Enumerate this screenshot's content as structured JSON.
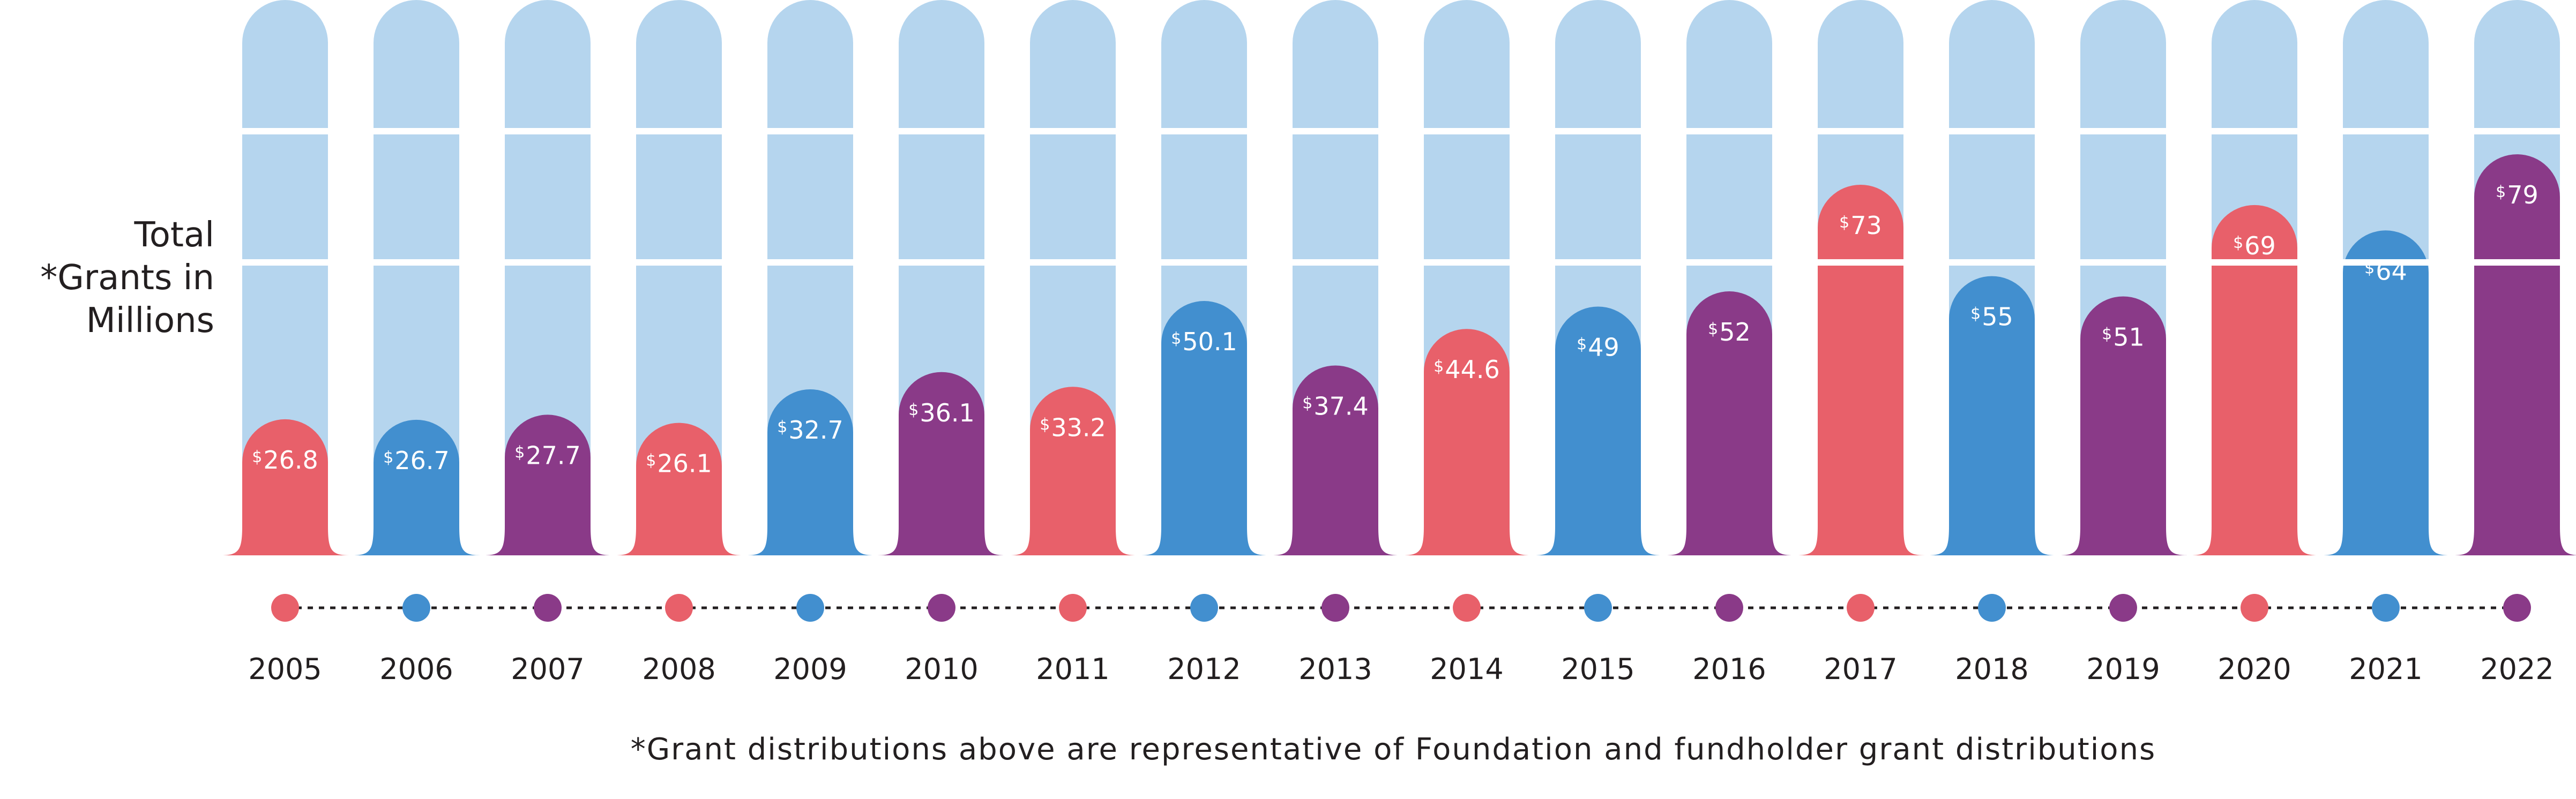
{
  "chart_data": {
    "type": "bar",
    "title": "",
    "ylabel_lines": [
      "Total",
      "*Grants in",
      "Millions"
    ],
    "xlabel": "",
    "currency_symbol": "$",
    "categories": [
      "2005",
      "2006",
      "2007",
      "2008",
      "2009",
      "2010",
      "2011",
      "2012",
      "2013",
      "2014",
      "2015",
      "2016",
      "2017",
      "2018",
      "2019",
      "2020",
      "2021",
      "2022"
    ],
    "values": [
      26.8,
      26.7,
      27.7,
      26.1,
      32.7,
      36.1,
      33.2,
      50.1,
      37.4,
      44.6,
      49,
      52,
      73,
      55,
      51,
      69,
      64,
      79
    ],
    "value_labels": [
      "26.8",
      "26.7",
      "27.7",
      "26.1",
      "32.7",
      "36.1",
      "33.2",
      "50.1",
      "37.4",
      "44.6",
      "49",
      "52",
      "73",
      "55",
      "51",
      "69",
      "64",
      "79"
    ],
    "ylim": [
      0,
      100
    ],
    "grid": true,
    "footnote": "*Grant distributions above are representative of Foundation and fundholder grant distributions",
    "colors": {
      "coral": "#e8606a",
      "blue": "#428fcf",
      "purple": "#8a3a88",
      "track": "#b5d5ee",
      "timeline_dots": "#231f20"
    },
    "bar_color_pattern": [
      "coral",
      "blue",
      "purple"
    ]
  }
}
